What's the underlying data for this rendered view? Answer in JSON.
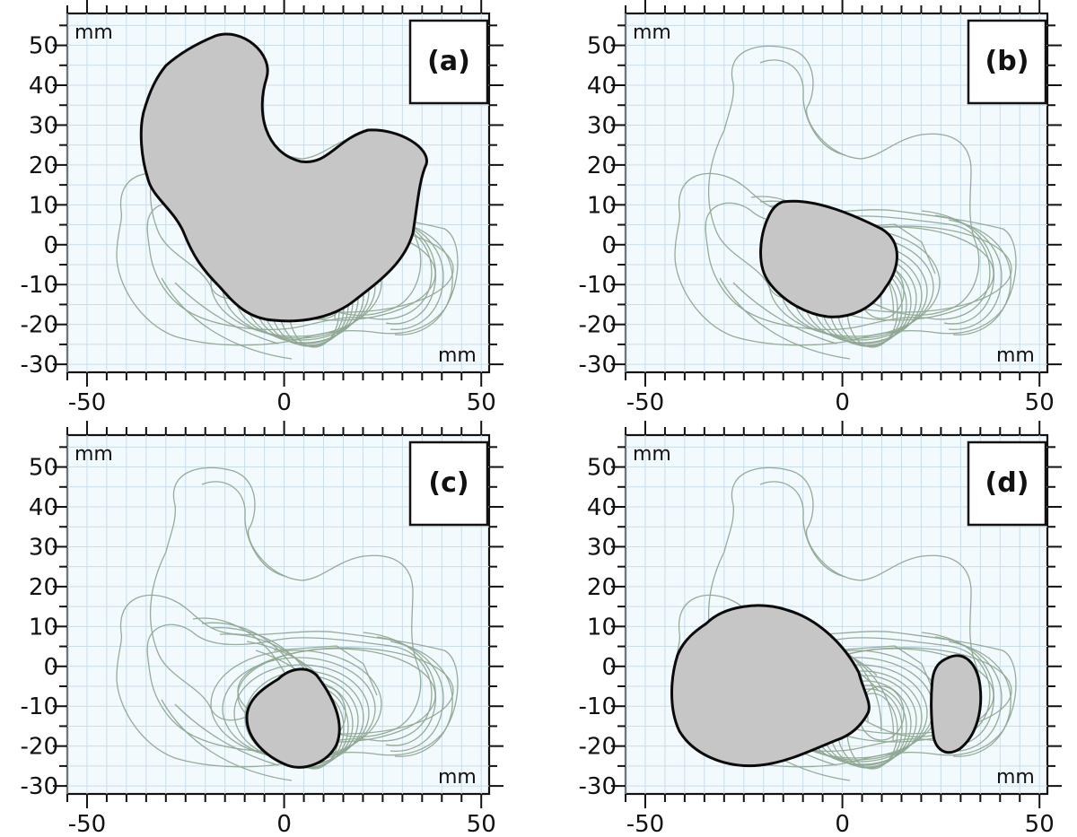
{
  "figure": {
    "axis_unit_label": "mm",
    "x_ticks": [
      "-50",
      "0",
      "50"
    ],
    "y_ticks": [
      "50",
      "40",
      "30",
      "20",
      "10",
      "0",
      "-10",
      "-20",
      "-30"
    ],
    "x_range": [
      -55,
      52
    ],
    "y_range": [
      -32,
      58
    ],
    "panels": [
      {
        "id": "a",
        "label": "(a)",
        "highlight": "upper-large-region"
      },
      {
        "id": "b",
        "label": "(b)",
        "highlight": "central-region"
      },
      {
        "id": "c",
        "label": "(c)",
        "highlight": "lower-central-region"
      },
      {
        "id": "d",
        "label": "(d)",
        "highlight": "left-and-right-regions"
      }
    ],
    "colors": {
      "background": "#f3fafe",
      "grid": "#c9dcea",
      "contour": "#8fa892",
      "highlight_fill": "#c6c6c6",
      "highlight_stroke": "#0a0a0a"
    }
  }
}
